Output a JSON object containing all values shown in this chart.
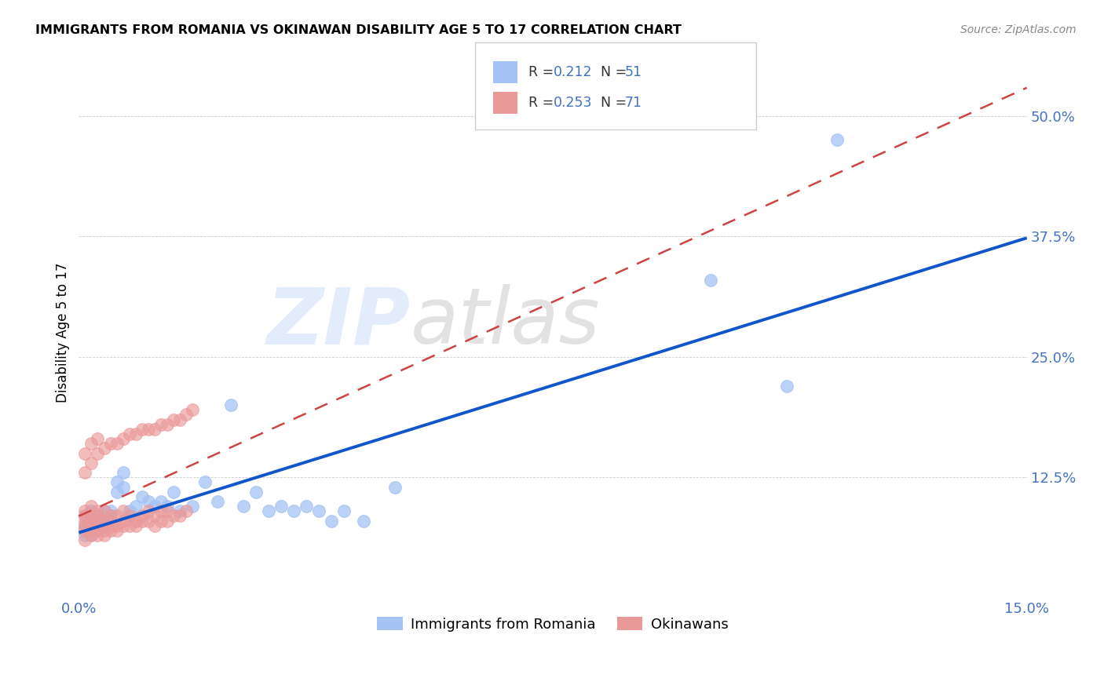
{
  "title": "IMMIGRANTS FROM ROMANIA VS OKINAWAN DISABILITY AGE 5 TO 17 CORRELATION CHART",
  "source": "Source: ZipAtlas.com",
  "tick_color": "#4472c4",
  "ylabel": "Disability Age 5 to 17",
  "xlim": [
    0.0,
    0.15
  ],
  "ylim": [
    0.0,
    0.55
  ],
  "y_ticks": [
    0.0,
    0.125,
    0.25,
    0.375,
    0.5
  ],
  "y_tick_labels": [
    "",
    "12.5%",
    "25.0%",
    "37.5%",
    "50.0%"
  ],
  "watermark_zip": "ZIP",
  "watermark_atlas": "atlas",
  "legend_text1": "R = 0.212   N = 51",
  "legend_text2": "R = 0.253   N = 71",
  "legend_label1": "Immigrants from Romania",
  "legend_label2": "Okinawans",
  "color_blue": "#a4c2f4",
  "color_pink": "#ea9999",
  "trend_blue_color": "#1155cc",
  "trend_pink_color": "#cc4444",
  "legend_r_color": "#1155cc",
  "legend_n_color": "#cc0000",
  "romania_x": [
    0.001,
    0.001,
    0.001,
    0.001,
    0.002,
    0.002,
    0.002,
    0.002,
    0.002,
    0.003,
    0.003,
    0.003,
    0.003,
    0.004,
    0.004,
    0.004,
    0.005,
    0.005,
    0.005,
    0.006,
    0.006,
    0.007,
    0.007,
    0.008,
    0.008,
    0.009,
    0.01,
    0.011,
    0.012,
    0.013,
    0.014,
    0.015,
    0.016,
    0.018,
    0.02,
    0.022,
    0.024,
    0.026,
    0.028,
    0.03,
    0.032,
    0.034,
    0.036,
    0.038,
    0.04,
    0.042,
    0.045,
    0.05,
    0.1,
    0.112,
    0.12
  ],
  "romania_y": [
    0.065,
    0.075,
    0.085,
    0.07,
    0.065,
    0.075,
    0.08,
    0.085,
    0.09,
    0.07,
    0.075,
    0.08,
    0.085,
    0.075,
    0.08,
    0.09,
    0.08,
    0.085,
    0.09,
    0.12,
    0.11,
    0.13,
    0.115,
    0.085,
    0.09,
    0.095,
    0.105,
    0.1,
    0.095,
    0.1,
    0.095,
    0.11,
    0.09,
    0.095,
    0.12,
    0.1,
    0.2,
    0.095,
    0.11,
    0.09,
    0.095,
    0.09,
    0.095,
    0.09,
    0.08,
    0.09,
    0.08,
    0.115,
    0.33,
    0.22,
    0.475
  ],
  "okinawa_x": [
    0.001,
    0.001,
    0.001,
    0.001,
    0.001,
    0.001,
    0.002,
    0.002,
    0.002,
    0.002,
    0.002,
    0.002,
    0.003,
    0.003,
    0.003,
    0.003,
    0.003,
    0.003,
    0.004,
    0.004,
    0.004,
    0.004,
    0.004,
    0.005,
    0.005,
    0.005,
    0.005,
    0.006,
    0.006,
    0.006,
    0.007,
    0.007,
    0.007,
    0.008,
    0.008,
    0.009,
    0.009,
    0.01,
    0.01,
    0.011,
    0.011,
    0.012,
    0.012,
    0.013,
    0.013,
    0.014,
    0.014,
    0.015,
    0.016,
    0.017,
    0.001,
    0.001,
    0.002,
    0.002,
    0.003,
    0.003,
    0.004,
    0.005,
    0.006,
    0.007,
    0.008,
    0.009,
    0.01,
    0.011,
    0.012,
    0.013,
    0.014,
    0.015,
    0.016,
    0.017,
    0.018
  ],
  "okinawa_y": [
    0.06,
    0.07,
    0.075,
    0.08,
    0.085,
    0.09,
    0.065,
    0.07,
    0.075,
    0.08,
    0.085,
    0.095,
    0.065,
    0.07,
    0.075,
    0.08,
    0.085,
    0.09,
    0.065,
    0.07,
    0.075,
    0.08,
    0.09,
    0.07,
    0.075,
    0.08,
    0.085,
    0.07,
    0.075,
    0.085,
    0.075,
    0.08,
    0.09,
    0.075,
    0.085,
    0.075,
    0.08,
    0.08,
    0.085,
    0.08,
    0.09,
    0.075,
    0.085,
    0.08,
    0.09,
    0.08,
    0.09,
    0.085,
    0.085,
    0.09,
    0.13,
    0.15,
    0.14,
    0.16,
    0.15,
    0.165,
    0.155,
    0.16,
    0.16,
    0.165,
    0.17,
    0.17,
    0.175,
    0.175,
    0.175,
    0.18,
    0.18,
    0.185,
    0.185,
    0.19,
    0.195
  ]
}
